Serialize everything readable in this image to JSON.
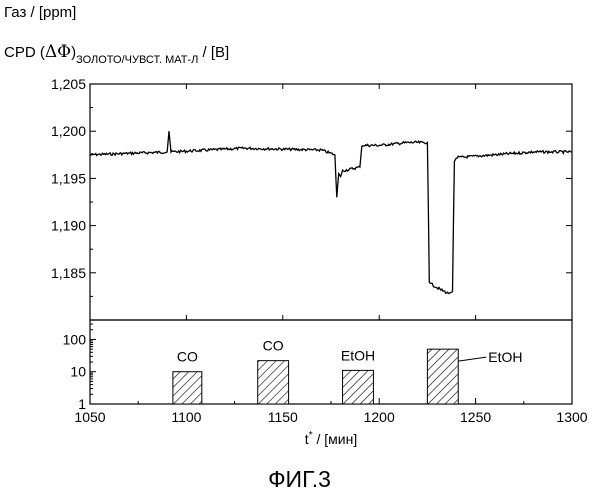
{
  "labels": {
    "gas_axis": "Газ / [ppm]",
    "cpd_prefix": "CPD (",
    "cpd_symbol": "ΔΦ",
    "cpd_close": ")",
    "cpd_subscript": "ЗОЛОТО/ЧУВСТ. МАТ-Л",
    "cpd_unit": " / [В]",
    "figure_caption": "ФИГ.3"
  },
  "chart_data": [
    {
      "type": "line",
      "ylabel": "CPD (ΔΦ)ЗОЛОТО/ЧУВСТ. МАТ-Л / [В]",
      "xlim": [
        1050,
        1300
      ],
      "ylim": [
        1.18,
        1.205
      ],
      "yticks": [
        1.185,
        1.19,
        1.195,
        1.2,
        1.205
      ],
      "ytick_labels": [
        "1,185",
        "1,190",
        "1,195",
        "1,200",
        "1,205"
      ],
      "grid": false,
      "series": [
        {
          "x": [
            1050,
            1090,
            1091,
            1092,
            1130,
            1170,
            1177,
            1178,
            1179,
            1180,
            1181,
            1190,
            1191,
            1200,
            1215,
            1225,
            1226,
            1227,
            1232,
            1236,
            1238,
            1239,
            1240,
            1260,
            1280,
            1300
          ],
          "y": [
            1.1975,
            1.1978,
            1.2,
            1.1978,
            1.1982,
            1.198,
            1.1975,
            1.193,
            1.1955,
            1.1952,
            1.1958,
            1.1962,
            1.1985,
            1.1985,
            1.1988,
            1.1988,
            1.184,
            1.1838,
            1.1832,
            1.1828,
            1.183,
            1.1968,
            1.1972,
            1.1975,
            1.1978,
            1.1978
          ]
        }
      ]
    },
    {
      "type": "bar",
      "ylabel": "Газ / [ppm]",
      "xlabel_text": "t",
      "xlabel_sup": "*",
      "xlabel_unit": " / [мин]",
      "xlim": [
        1050,
        1300
      ],
      "xticks": [
        1050,
        1100,
        1150,
        1200,
        1250,
        1300
      ],
      "xtick_labels": [
        "1050",
        "1100",
        "1150",
        "1200",
        "1250",
        "1300"
      ],
      "y_scale": "log",
      "ylim": [
        1,
        400
      ],
      "yticks": [
        1,
        10,
        100
      ],
      "ytick_labels": [
        "1",
        "10",
        "100"
      ],
      "bars": [
        {
          "label": "CO",
          "x_start": 1093,
          "x_end": 1108,
          "value": 10
        },
        {
          "label": "CO",
          "x_start": 1137,
          "x_end": 1153,
          "value": 22
        },
        {
          "label": "EtOH",
          "x_start": 1181,
          "x_end": 1197,
          "value": 11
        },
        {
          "label": "EtOH",
          "x_start": 1225,
          "x_end": 1241,
          "value": 50
        }
      ]
    }
  ]
}
